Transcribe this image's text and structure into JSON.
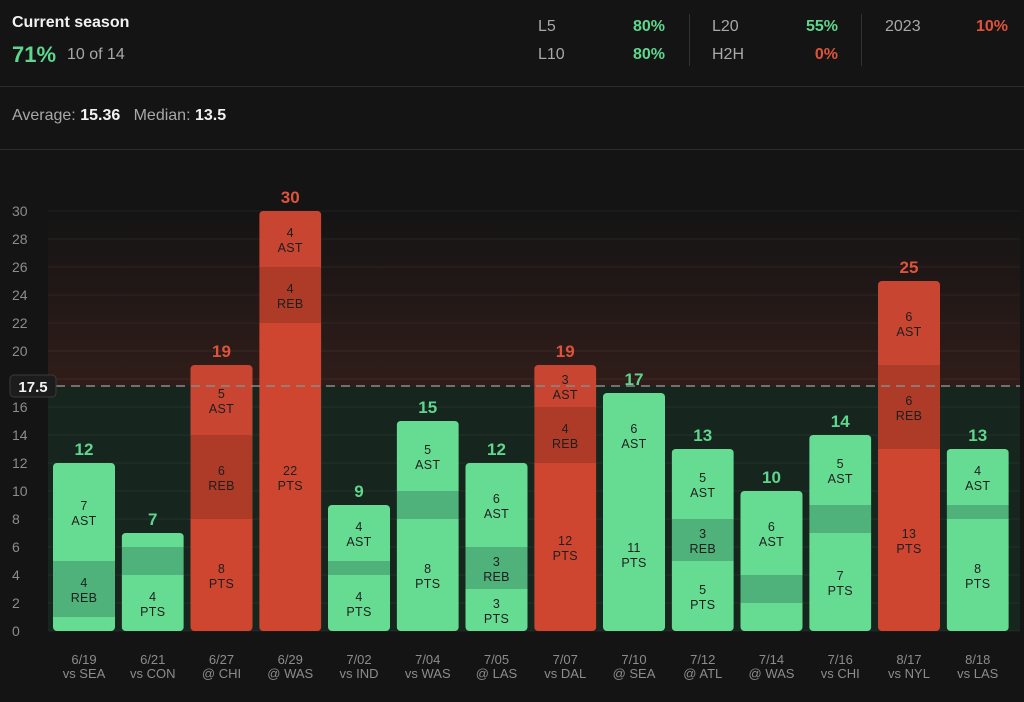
{
  "header": {
    "title": "Current season",
    "hit_rate": "71%",
    "hit_count": "10 of 14",
    "stats": [
      {
        "label": "L5",
        "value": "80%",
        "color": "#5fd68d"
      },
      {
        "label": "L10",
        "value": "80%",
        "color": "#5fd68d"
      },
      {
        "label": "L20",
        "value": "55%",
        "color": "#5fd68d"
      },
      {
        "label": "H2H",
        "value": "0%",
        "color": "#e0533b"
      },
      {
        "label": "2023",
        "value": "10%",
        "color": "#e0533b"
      }
    ]
  },
  "summary": {
    "average_label": "Average:",
    "average_value": "15.36",
    "median_label": "Median:",
    "median_value": "13.5"
  },
  "chart_data": {
    "type": "bar",
    "stacked": true,
    "line_value": 17.5,
    "line_label": "17.5",
    "ylim": [
      0,
      30
    ],
    "yticks": [
      0,
      2,
      4,
      6,
      8,
      10,
      12,
      14,
      16,
      18,
      20,
      22,
      24,
      26,
      28,
      30
    ],
    "grid": true,
    "colors": {
      "over": "#e0533b",
      "under": "#5fd68d"
    },
    "games": [
      {
        "date": "6/19",
        "opp": "vs SEA",
        "total": 12,
        "segments": [
          {
            "stat": "PTS",
            "value": 1,
            "label": ""
          },
          {
            "stat": "REB",
            "value": 4,
            "label": "4\nREB"
          },
          {
            "stat": "AST",
            "value": 7,
            "label": "7\nAST"
          }
        ]
      },
      {
        "date": "6/21",
        "opp": "vs CON",
        "total": 7,
        "segments": [
          {
            "stat": "PTS",
            "value": 4,
            "label": "4\nPTS"
          },
          {
            "stat": "REB",
            "value": 2,
            "label": ""
          },
          {
            "stat": "AST",
            "value": 1,
            "label": ""
          }
        ]
      },
      {
        "date": "6/27",
        "opp": "@ CHI",
        "total": 19,
        "segments": [
          {
            "stat": "PTS",
            "value": 8,
            "label": "8\nPTS"
          },
          {
            "stat": "REB",
            "value": 6,
            "label": "6\nREB"
          },
          {
            "stat": "AST",
            "value": 5,
            "label": "5\nAST"
          }
        ]
      },
      {
        "date": "6/29",
        "opp": "@ WAS",
        "total": 30,
        "segments": [
          {
            "stat": "PTS",
            "value": 22,
            "label": "22\nPTS"
          },
          {
            "stat": "REB",
            "value": 4,
            "label": "4\nREB"
          },
          {
            "stat": "AST",
            "value": 4,
            "label": "4\nAST"
          }
        ]
      },
      {
        "date": "7/02",
        "opp": "vs IND",
        "total": 9,
        "segments": [
          {
            "stat": "PTS",
            "value": 4,
            "label": "4\nPTS"
          },
          {
            "stat": "REB",
            "value": 1,
            "label": ""
          },
          {
            "stat": "AST",
            "value": 4,
            "label": "4\nAST"
          }
        ]
      },
      {
        "date": "7/04",
        "opp": "vs WAS",
        "total": 15,
        "segments": [
          {
            "stat": "PTS",
            "value": 8,
            "label": "8\nPTS"
          },
          {
            "stat": "REB",
            "value": 2,
            "label": ""
          },
          {
            "stat": "AST",
            "value": 5,
            "label": "5\nAST"
          }
        ]
      },
      {
        "date": "7/05",
        "opp": "@ LAS",
        "total": 12,
        "segments": [
          {
            "stat": "PTS",
            "value": 3,
            "label": "3\nPTS"
          },
          {
            "stat": "REB",
            "value": 3,
            "label": "3\nREB"
          },
          {
            "stat": "AST",
            "value": 6,
            "label": "6\nAST"
          }
        ]
      },
      {
        "date": "7/07",
        "opp": "vs DAL",
        "total": 19,
        "segments": [
          {
            "stat": "PTS",
            "value": 12,
            "label": "12\nPTS"
          },
          {
            "stat": "REB",
            "value": 4,
            "label": "4\nREB"
          },
          {
            "stat": "AST",
            "value": 3,
            "label": "3\nAST"
          }
        ]
      },
      {
        "date": "7/10",
        "opp": "@ SEA",
        "total": 17,
        "segments": [
          {
            "stat": "PTS",
            "value": 11,
            "label": "11\nPTS"
          },
          {
            "stat": "AST",
            "value": 6,
            "label": "6\nAST"
          }
        ]
      },
      {
        "date": "7/12",
        "opp": "@ ATL",
        "total": 13,
        "segments": [
          {
            "stat": "PTS",
            "value": 5,
            "label": "5\nPTS"
          },
          {
            "stat": "REB",
            "value": 3,
            "label": "3\nREB"
          },
          {
            "stat": "AST",
            "value": 5,
            "label": "5\nAST"
          }
        ]
      },
      {
        "date": "7/14",
        "opp": "@ WAS",
        "total": 10,
        "segments": [
          {
            "stat": "PTS",
            "value": 2,
            "label": ""
          },
          {
            "stat": "REB",
            "value": 2,
            "label": ""
          },
          {
            "stat": "AST",
            "value": 6,
            "label": "6\nAST"
          }
        ]
      },
      {
        "date": "7/16",
        "opp": "vs CHI",
        "total": 14,
        "segments": [
          {
            "stat": "PTS",
            "value": 7,
            "label": "7\nPTS"
          },
          {
            "stat": "REB",
            "value": 2,
            "label": ""
          },
          {
            "stat": "AST",
            "value": 5,
            "label": "5\nAST"
          }
        ]
      },
      {
        "date": "8/17",
        "opp": "vs NYL",
        "total": 25,
        "segments": [
          {
            "stat": "PTS",
            "value": 13,
            "label": "13\nPTS"
          },
          {
            "stat": "REB",
            "value": 6,
            "label": "6\nREB"
          },
          {
            "stat": "AST",
            "value": 6,
            "label": "6\nAST"
          }
        ]
      },
      {
        "date": "8/18",
        "opp": "vs LAS",
        "total": 13,
        "segments": [
          {
            "stat": "PTS",
            "value": 8,
            "label": "8\nPTS"
          },
          {
            "stat": "REB",
            "value": 1,
            "label": ""
          },
          {
            "stat": "AST",
            "value": 4,
            "label": "4\nAST"
          }
        ]
      }
    ]
  }
}
